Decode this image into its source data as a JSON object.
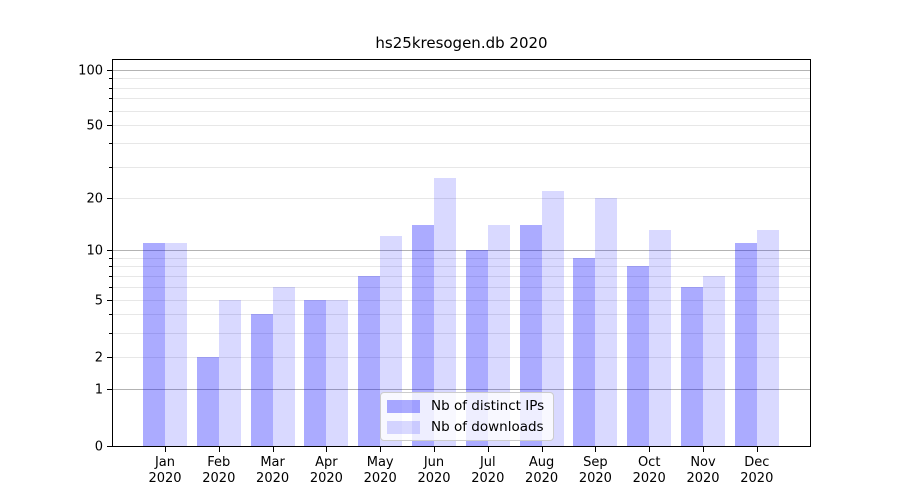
{
  "chart_data": {
    "type": "bar",
    "title": "hs25kresogen.db 2020",
    "categories": [
      "Jan 2020",
      "Feb 2020",
      "Mar 2020",
      "Apr 2020",
      "May 2020",
      "Jun 2020",
      "Jul 2020",
      "Aug 2020",
      "Sep 2020",
      "Oct 2020",
      "Nov 2020",
      "Dec 2020"
    ],
    "series": [
      {
        "name": "Nb of distinct IPs",
        "color": "rgba(0,0,255,0.33)",
        "values": [
          11,
          2,
          4,
          5,
          7,
          14,
          10,
          14,
          9,
          8,
          6,
          11
        ]
      },
      {
        "name": "Nb of downloads",
        "color": "rgba(0,0,255,0.15)",
        "values": [
          11,
          5,
          6,
          5,
          12,
          26,
          14,
          22,
          20,
          13,
          7,
          13
        ]
      }
    ],
    "xlabel": "",
    "ylabel": "",
    "y_axis": {
      "scale": "symlog",
      "labeled_ticks": [
        0,
        1,
        2,
        5,
        10,
        20,
        50,
        100
      ],
      "unlabeled_ticks": [
        3,
        4,
        6,
        7,
        8,
        9,
        30,
        40,
        60,
        70,
        80,
        90
      ],
      "major_gridlines": [
        1,
        10,
        100
      ],
      "minor_gridlines": [
        2,
        3,
        4,
        5,
        6,
        7,
        8,
        9,
        20,
        30,
        40,
        50,
        60,
        70,
        80,
        90
      ],
      "ylim_top": 115
    },
    "legend": {
      "position": "lower center",
      "entries": [
        "Nb of distinct IPs",
        "Nb of downloads"
      ]
    },
    "grid": true,
    "colors": {
      "bar_dark": "rgba(0,0,255,0.33)",
      "bar_light": "rgba(0,0,255,0.15)",
      "major_grid": "#b3b3b3",
      "minor_grid": "#e7e7e7",
      "axis": "#000000",
      "background": "#ffffff"
    }
  }
}
